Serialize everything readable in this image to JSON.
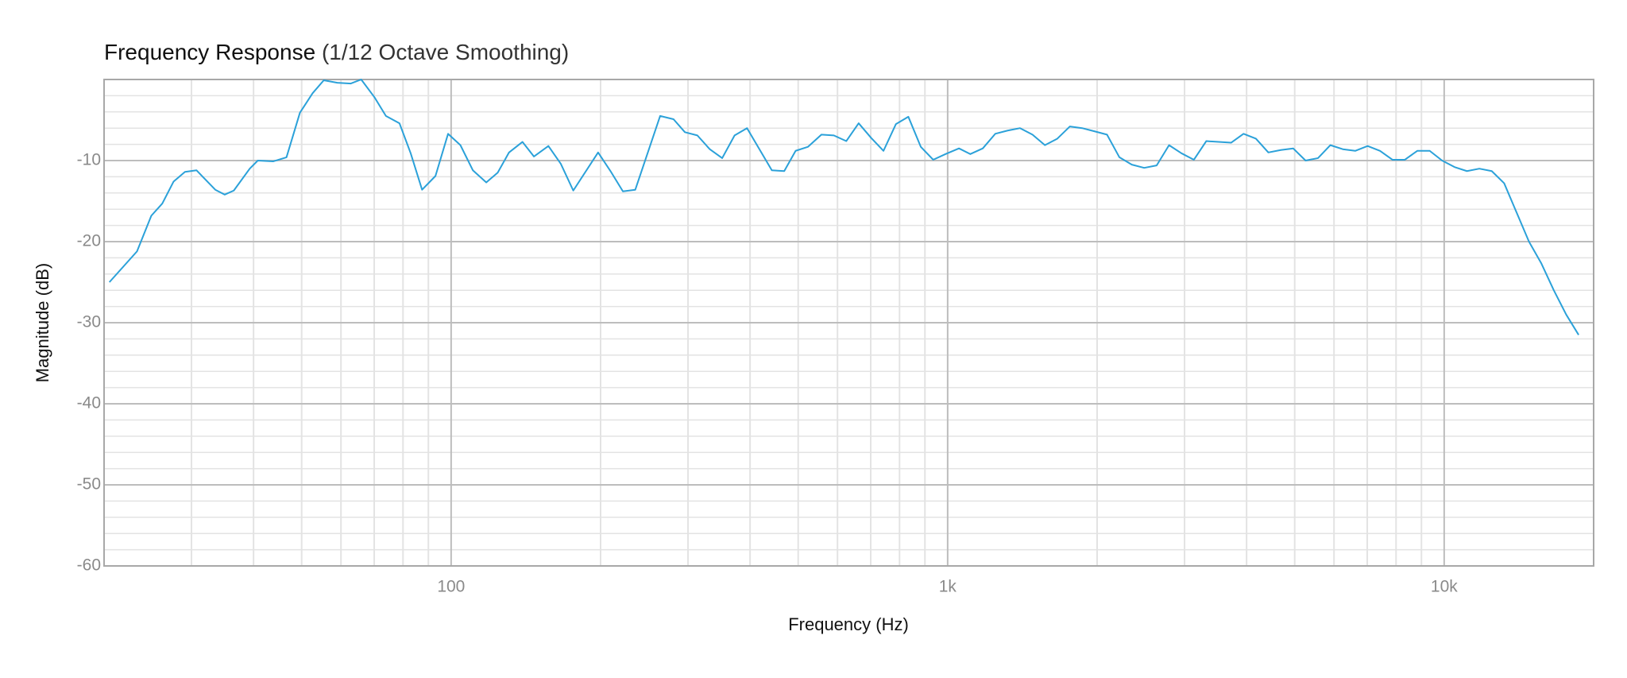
{
  "chart_data": {
    "type": "line",
    "title": "Frequency Response",
    "subtitle": "(1/12 Octave Smoothing)",
    "x_label": "Frequency (Hz)",
    "y_label": "Magnitude (dB)",
    "log_x": true,
    "grid": true,
    "color": "#2ba1d9",
    "xlim": [
      20,
      20000
    ],
    "ylim": [
      -60,
      0
    ],
    "xticks": [
      100,
      {
        "value": 1000,
        "label": "1k"
      },
      {
        "value": 10000,
        "label": "10k"
      }
    ],
    "yticks": [
      -60,
      -50,
      -40,
      -30,
      -20,
      -10
    ],
    "xminorticks": [
      30,
      40,
      50,
      60,
      70,
      80,
      90,
      200,
      300,
      400,
      500,
      600,
      700,
      800,
      900,
      2000,
      3000,
      4000,
      5000,
      6000,
      7000,
      8000,
      9000
    ],
    "yminorticks": [
      -58,
      -56,
      -54,
      -52,
      -48,
      -46,
      -44,
      -42,
      -38,
      -36,
      -34,
      -32,
      -28,
      -26,
      -24,
      -22,
      -18,
      -16,
      -14,
      -12,
      -8,
      -6,
      -4,
      -2
    ],
    "x": [
      20.5,
      23.3,
      24.9,
      26.2,
      27.6,
      29.1,
      30.7,
      33.5,
      35.0,
      36.5,
      39.3,
      40.8,
      43.8,
      46.6,
      49.6,
      52.6,
      55.4,
      59.0,
      62.8,
      65.9,
      70.1,
      73.9,
      78.7,
      82.9,
      87.4,
      93.0,
      98.6,
      104.4,
      110.6,
      117.7,
      124.1,
      130.8,
      139.2,
      146.8,
      157.0,
      166.3,
      176.2,
      197.7,
      209.4,
      221.8,
      234.9,
      263.6,
      280.5,
      295.7,
      313.3,
      331.8,
      351.5,
      372.3,
      394.4,
      442.5,
      468.7,
      494.1,
      523.4,
      556.9,
      589.9,
      624.9,
      661.9,
      701.2,
      742.7,
      786.8,
      833.4,
      882.8,
      935.1,
      990.4,
      1054,
      1111,
      1177,
      1247,
      1321,
      1399,
      1482,
      1570,
      1663,
      1762,
      1866,
      1977,
      2094,
      2218,
      2349,
      2488,
      2636,
      2792,
      2957,
      3133,
      3318,
      3515,
      3723,
      3944,
      4177,
      4425,
      4687,
      4965,
      5259,
      5570,
      5900,
      6250,
      6620,
      7012,
      7427,
      7867,
      8334,
      8828,
      9351,
      9905,
      10492,
      11113,
      11772,
      12469,
      13208,
      13990,
      14819,
      15697,
      16627,
      17612,
      18655
    ],
    "values": [
      -25.0,
      -21.2,
      -16.8,
      -15.3,
      -12.6,
      -11.4,
      -11.2,
      -13.6,
      -14.2,
      -13.7,
      -11.0,
      -10.0,
      -10.1,
      -9.6,
      -4.1,
      -1.7,
      -0.1,
      -0.4,
      -0.5,
      0.0,
      -2.2,
      -4.5,
      -5.4,
      -9.1,
      -13.6,
      -11.9,
      -6.7,
      -8.1,
      -11.2,
      -12.7,
      -11.5,
      -9.0,
      -7.7,
      -9.5,
      -8.2,
      -10.4,
      -13.7,
      -9.0,
      -11.3,
      -13.8,
      -13.6,
      -4.5,
      -4.9,
      -6.5,
      -6.9,
      -8.6,
      -9.7,
      -6.9,
      -6.0,
      -11.2,
      -11.3,
      -8.8,
      -8.3,
      -6.8,
      -6.9,
      -7.6,
      -5.4,
      -7.2,
      -8.8,
      -5.5,
      -4.6,
      -8.3,
      -9.9,
      -9.2,
      -8.5,
      -9.2,
      -8.5,
      -6.7,
      -6.3,
      -6.0,
      -6.8,
      -8.1,
      -7.3,
      -5.8,
      -6.0,
      -6.4,
      -6.8,
      -9.6,
      -10.5,
      -10.9,
      -10.6,
      -8.1,
      -9.1,
      -9.9,
      -7.6,
      -7.7,
      -7.8,
      -6.7,
      -7.3,
      -9.0,
      -8.7,
      -8.5,
      -10.0,
      -9.7,
      -8.1,
      -8.6,
      -8.8,
      -8.2,
      -8.8,
      -9.9,
      -9.9,
      -8.8,
      -8.8,
      -10.0,
      -10.8,
      -11.3,
      -11.0,
      -11.3,
      -12.8,
      -16.4,
      -20.0,
      -22.7,
      -26.0,
      -29.0,
      -31.5
    ]
  }
}
